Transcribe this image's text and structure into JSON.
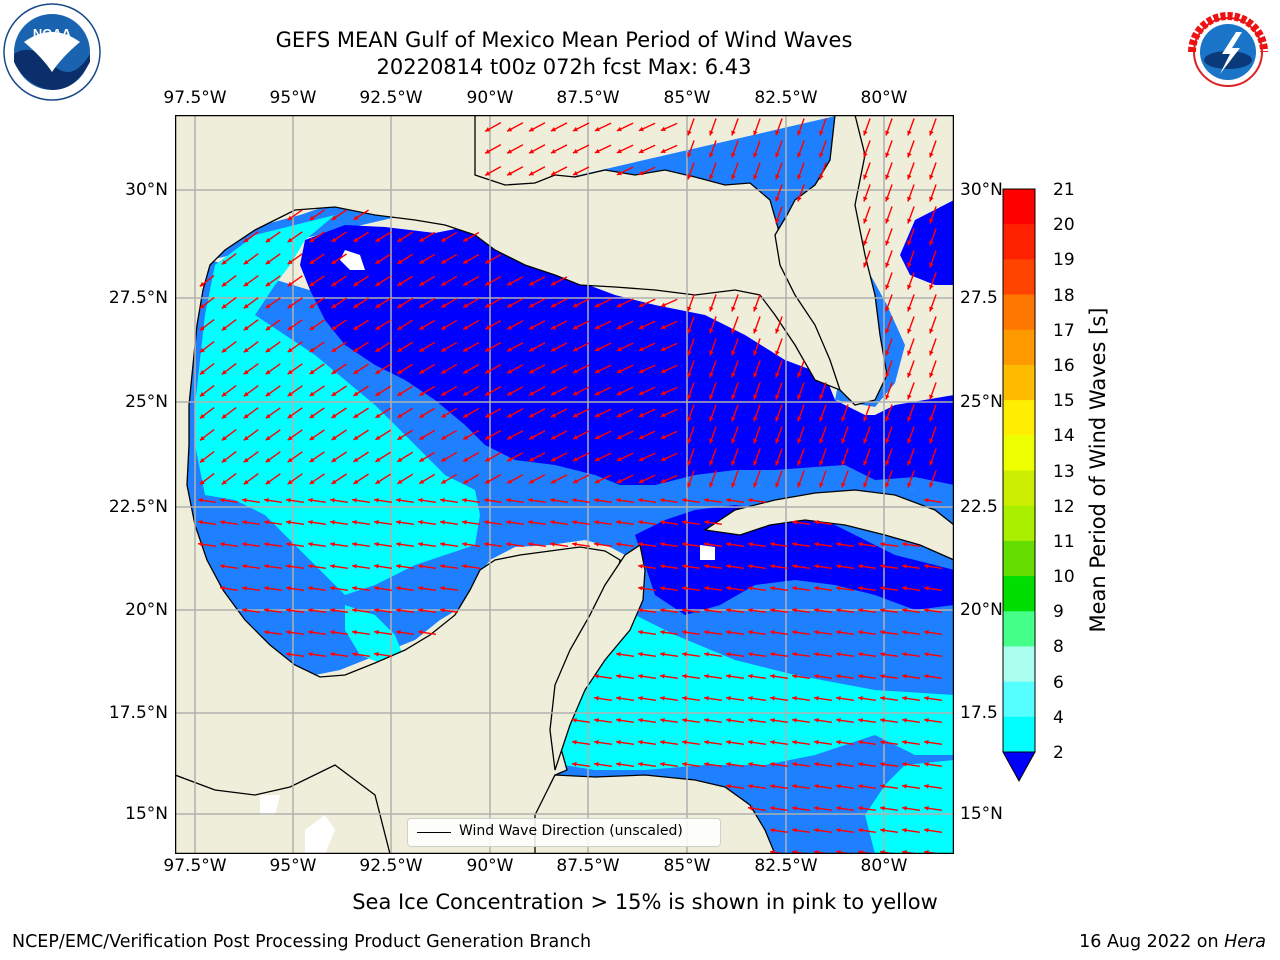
{
  "title": {
    "line1": "GEFS MEAN Gulf of Mexico Mean Period of Wind Waves",
    "line2": "20220814 t00z 072h fcst   Max: 6.43"
  },
  "logos": {
    "left": {
      "name": "noaa-logo",
      "text": "NOAA"
    },
    "right": {
      "name": "nws-logo",
      "text": "NATIONAL WEATHER SERVICE"
    }
  },
  "map": {
    "lon_ticks_top": [
      "97.5°W",
      "95°W",
      "92.5°W",
      "90°W",
      "87.5°W",
      "85°W",
      "82.5°W",
      "80°W"
    ],
    "lon_ticks_bottom": [
      "97.5°W",
      "95°W",
      "92.5°W",
      "90°W",
      "87.5°W",
      "85°W",
      "82.5°W",
      "80°W"
    ],
    "lat_ticks_left": [
      "30°N",
      "27.5°N",
      "25°N",
      "22.5°N",
      "20°N",
      "17.5°N",
      "15°N"
    ],
    "lat_ticks_right": [
      "30°N",
      "27.5",
      "25°N",
      "22.5",
      "20°N",
      "17.5",
      "15°N"
    ],
    "legend": "Wind Wave Direction (unscaled)",
    "colors": {
      "land": "#efeedb",
      "ocean_2_4": "#1e80ff",
      "ocean_4_6": "#00ffff",
      "ocean_lt2": "#0000ff",
      "arrow": "#ff0000"
    }
  },
  "colorbar": {
    "title": "Mean Period of Wind Waves [s]",
    "labels": [
      "21",
      "20",
      "19",
      "18",
      "17",
      "16",
      "15",
      "14",
      "13",
      "12",
      "11",
      "10",
      "9",
      "8",
      "6",
      "4",
      "2"
    ],
    "colors": [
      "#ff0000",
      "#ff2200",
      "#ff4400",
      "#ff7700",
      "#ff9900",
      "#ffbb00",
      "#ffee00",
      "#eeff00",
      "#ccee00",
      "#aaee00",
      "#66dd00",
      "#00dd00",
      "#44ff88",
      "#aaffee",
      "#55ffff",
      "#00ffff",
      "#1e80ff"
    ],
    "extend_color": "#0000ff"
  },
  "footnote": "Sea Ice Concentration > 15% is shown in pink to yellow",
  "footer": {
    "left": "NCEP/EMC/Verification Post Processing Product Generation Branch",
    "right_prefix": "16 Aug 2022 on ",
    "right_italic": "Hera"
  }
}
